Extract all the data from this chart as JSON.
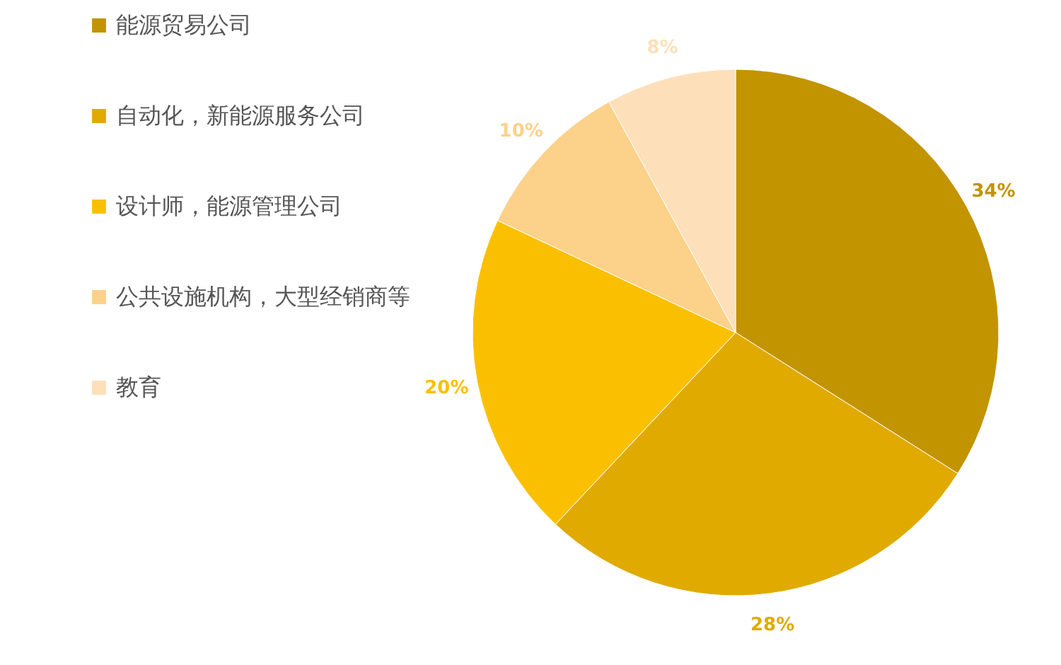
{
  "chart_data": {
    "type": "pie",
    "categories": [
      "能源贸易公司",
      "自动化，新能源服务公司",
      "设计师，能源管理公司",
      "公共设施机构，大型经销商等",
      "教育"
    ],
    "values": [
      34,
      28,
      20,
      10,
      8
    ],
    "value_labels": [
      "34%",
      "28%",
      "20%",
      "10%",
      "8%"
    ],
    "colors": [
      "#c29400",
      "#e0aa00",
      "#fac000",
      "#fcd18a",
      "#fde0ba"
    ],
    "legend": "left"
  }
}
